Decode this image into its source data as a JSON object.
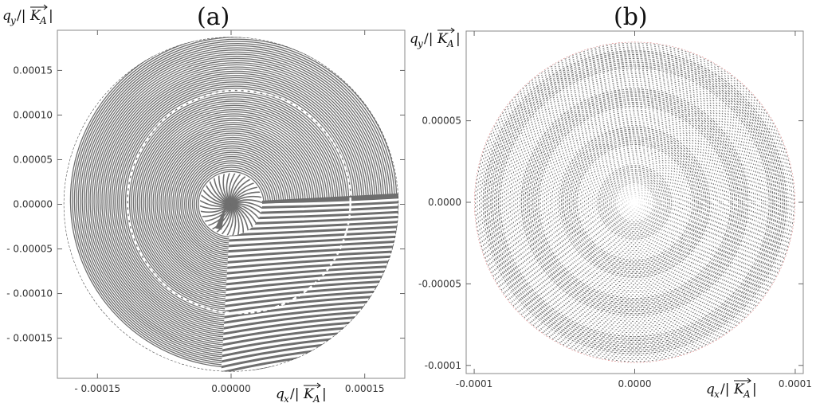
{
  "chart_data": [
    {
      "type": "scatter",
      "panel_label": "(a)",
      "x_label": {
        "main": "q",
        "sub": "x",
        "sep": "/|",
        "vec": "K",
        "vsub": "A",
        "close": "|"
      },
      "y_label": {
        "main": "q",
        "sub": "y",
        "sep": "/|",
        "vec": "K",
        "vsub": "A",
        "close": "|"
      },
      "xlim": [
        -0.000195,
        0.000195
      ],
      "ylim": [
        -0.000195,
        0.000195
      ],
      "x_ticks": [
        {
          "value": -0.00015,
          "label": "- 0.00015"
        },
        {
          "value": 0.0,
          "label": "0.00000"
        },
        {
          "value": 0.00015,
          "label": "0.00015"
        }
      ],
      "y_ticks": [
        {
          "value": 0.00015,
          "label": "0.00015"
        },
        {
          "value": 0.0001,
          "label": "0.00010"
        },
        {
          "value": 5e-05,
          "label": "0.00005"
        },
        {
          "value": 0.0,
          "label": "0.00000"
        },
        {
          "value": -5e-05,
          "label": "- 0.00005"
        },
        {
          "value": -0.0001,
          "label": "- 0.00010"
        },
        {
          "value": -0.00015,
          "label": "- 0.00015"
        }
      ],
      "disk_radius": 0.000188,
      "inner_circle_radius": 3.5e-05,
      "mid_circle_radius": 0.000125,
      "pattern": "spiral-fringes",
      "fringe_color": "#6e6e6e",
      "grid": false
    },
    {
      "type": "scatter",
      "panel_label": "(b)",
      "x_label": {
        "main": "q",
        "sub": "x",
        "sep": "/|",
        "vec": "K",
        "vsub": "A",
        "close": "|"
      },
      "y_label": {
        "main": "q",
        "sub": "y",
        "sep": "/|",
        "vec": "K",
        "vsub": "A",
        "close": "|"
      },
      "xlim": [
        -0.000105,
        0.000105
      ],
      "ylim": [
        -0.000105,
        0.000105
      ],
      "x_ticks": [
        {
          "value": -0.0001,
          "label": "-0.0001"
        },
        {
          "value": 0.0,
          "label": "0.0000"
        },
        {
          "value": 0.0001,
          "label": "0.0001"
        }
      ],
      "y_ticks": [
        {
          "value": 5e-05,
          "label": "0.00005"
        },
        {
          "value": 0.0,
          "label": "0.0000"
        },
        {
          "value": -5e-05,
          "label": "-0.00005"
        },
        {
          "value": -0.0001,
          "label": "-0.0001"
        }
      ],
      "disk_radius": 0.0001,
      "pattern": "moire-rings",
      "fringe_color": "#5a5a5a",
      "edge_color": "#d06060",
      "grid": false
    }
  ]
}
